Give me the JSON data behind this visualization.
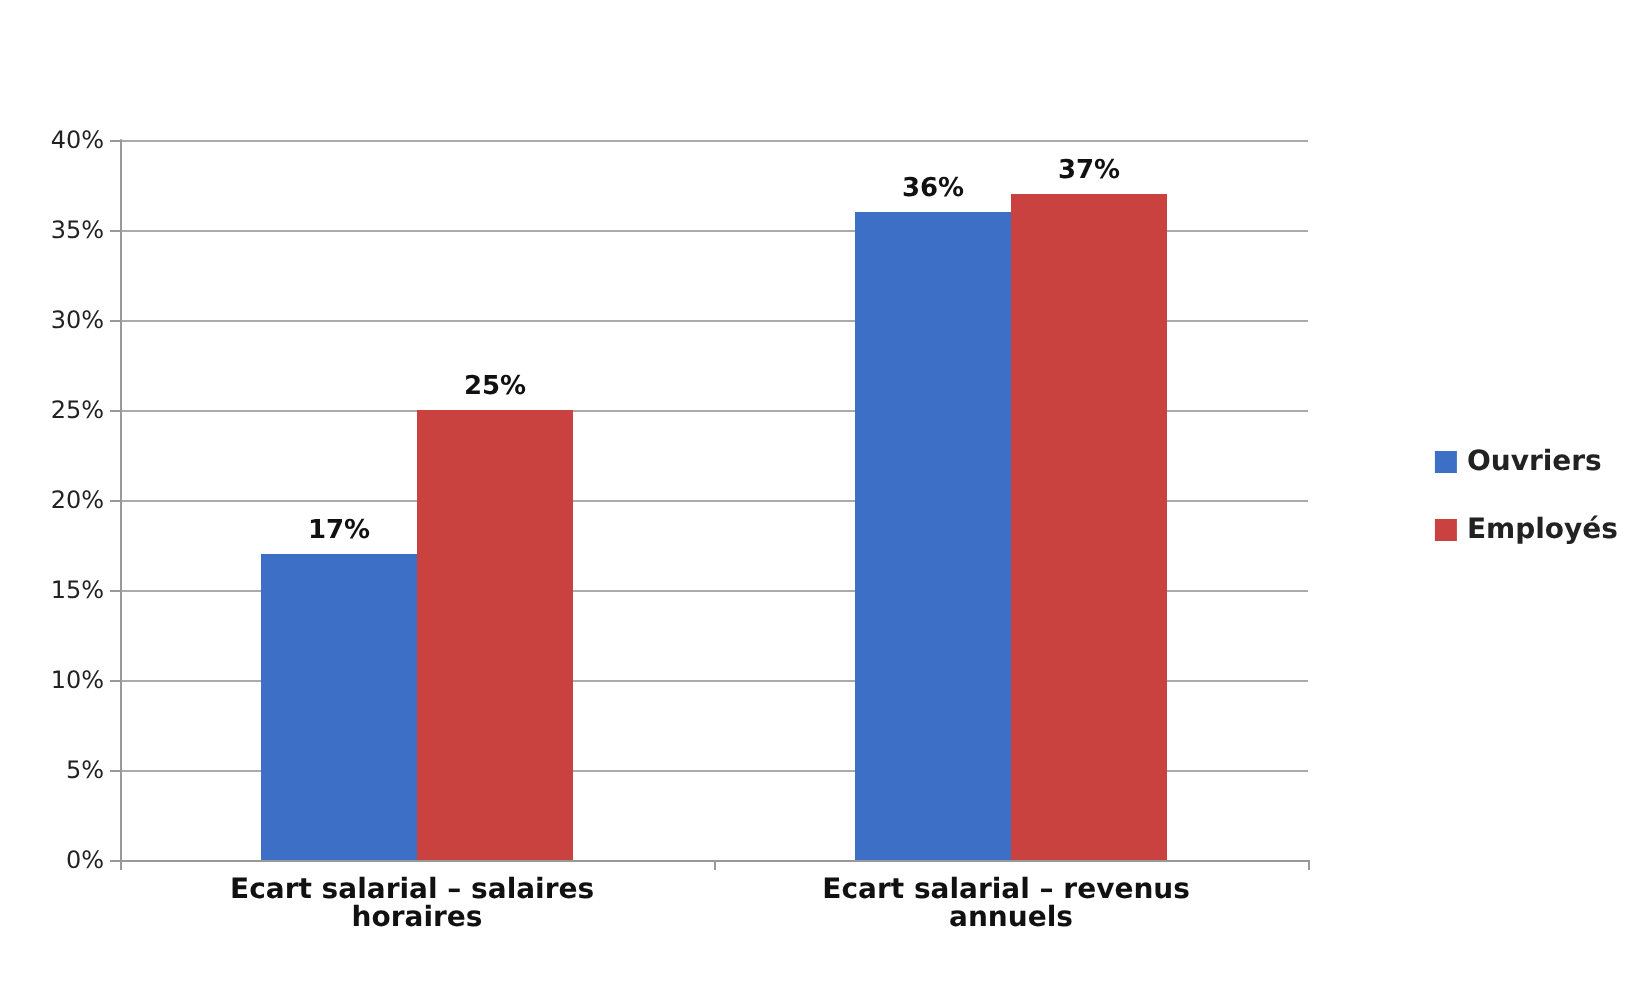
{
  "chart_data": {
    "type": "bar",
    "categories": [
      "Ecart salarial – salaires horaires",
      "Ecart salarial – revenus annuels"
    ],
    "series": [
      {
        "name": "Ouvriers",
        "color": "#3d6fc6",
        "values": [
          17,
          36
        ],
        "value_labels": [
          "17%",
          "36%"
        ]
      },
      {
        "name": "Employés",
        "color": "#c9423f",
        "values": [
          25,
          37
        ],
        "value_labels": [
          "25%",
          "37%"
        ]
      }
    ],
    "ylim": [
      0,
      40
    ],
    "yticks": [
      {
        "value": 0,
        "label": "0%"
      },
      {
        "value": 5,
        "label": "5%"
      },
      {
        "value": 10,
        "label": "10%"
      },
      {
        "value": 15,
        "label": "15%"
      },
      {
        "value": 20,
        "label": "20%"
      },
      {
        "value": 25,
        "label": "25%"
      },
      {
        "value": 30,
        "label": "30%"
      },
      {
        "value": 35,
        "label": "35%"
      },
      {
        "value": 40,
        "label": "40%"
      }
    ],
    "grid": "y",
    "legend": "right"
  }
}
